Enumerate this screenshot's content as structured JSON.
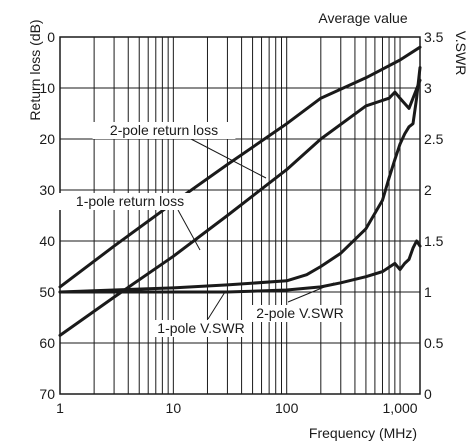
{
  "chart_data": {
    "type": "line",
    "subtitle": "Average value",
    "xlabel": "Frequency (MHz)",
    "ylabel": "Return loss (dB)",
    "y2label": "V.SWR",
    "x_scale": "log",
    "xlim": [
      1,
      1500
    ],
    "ylim": [
      70,
      0
    ],
    "y2lim": [
      0,
      3.5
    ],
    "grid": true,
    "x_ticks": [
      {
        "value": 1,
        "label": "1"
      },
      {
        "value": 10,
        "label": "10"
      },
      {
        "value": 100,
        "label": "100"
      },
      {
        "value": 1000,
        "label": "1,000"
      }
    ],
    "y_ticks": [
      {
        "value": 0,
        "label": "0"
      },
      {
        "value": 10,
        "label": "10"
      },
      {
        "value": 20,
        "label": "20"
      },
      {
        "value": 30,
        "label": "30"
      },
      {
        "value": 40,
        "label": "40"
      },
      {
        "value": 50,
        "label": "50"
      },
      {
        "value": 60,
        "label": "60"
      },
      {
        "value": 70,
        "label": "70"
      }
    ],
    "y2_ticks": [
      {
        "value": 0,
        "label": "0"
      },
      {
        "value": 0.5,
        "label": "0.5"
      },
      {
        "value": 1,
        "label": "1"
      },
      {
        "value": 1.5,
        "label": "1.5"
      },
      {
        "value": 2,
        "label": "2"
      },
      {
        "value": 2.5,
        "label": "2.5"
      },
      {
        "value": 3,
        "label": "3"
      },
      {
        "value": 3.5,
        "label": "3.5"
      }
    ],
    "series": [
      {
        "name": "2-pole return loss",
        "axis": "left",
        "x": [
          1,
          3,
          10,
          30,
          100,
          200,
          500,
          1000,
          1500
        ],
        "y": [
          49,
          41,
          32.5,
          25,
          17,
          12,
          8,
          4.5,
          2
        ]
      },
      {
        "name": "1-pole return loss",
        "axis": "left",
        "x": [
          1,
          3,
          10,
          30,
          100,
          200,
          500,
          800,
          900,
          1000,
          1200,
          1500
        ],
        "y": [
          58.5,
          51,
          43,
          35,
          26,
          20,
          13.5,
          12,
          10.8,
          12,
          14,
          8.5
        ]
      },
      {
        "name": "2-pole V.SWR",
        "axis": "right",
        "x": [
          1,
          3,
          10,
          30,
          100,
          150,
          200,
          300,
          500,
          700,
          800,
          900,
          1000,
          1100,
          1200,
          1300,
          1400,
          1500
        ],
        "y": [
          1,
          1.02,
          1.04,
          1.07,
          1.11,
          1.17,
          1.25,
          1.38,
          1.62,
          1.9,
          2.12,
          2.3,
          2.45,
          2.55,
          2.62,
          2.65,
          2.9,
          3.2
        ]
      },
      {
        "name": "1-pole V.SWR",
        "axis": "right",
        "x": [
          1,
          3,
          10,
          30,
          100,
          200,
          300,
          500,
          700,
          900,
          1000,
          1100,
          1200,
          1300,
          1400,
          1500
        ],
        "y": [
          1,
          1,
          1,
          1,
          1.02,
          1.05,
          1.09,
          1.15,
          1.2,
          1.28,
          1.22,
          1.28,
          1.32,
          1.43,
          1.5,
          1.45
        ]
      }
    ],
    "annotations": [
      {
        "text": "2-pole return loss",
        "series": 0
      },
      {
        "text": "1-pole return loss",
        "series": 1
      },
      {
        "text": "2-pole V.SWR",
        "series": 2
      },
      {
        "text": "1-pole V.SWR",
        "series": 3
      }
    ]
  }
}
